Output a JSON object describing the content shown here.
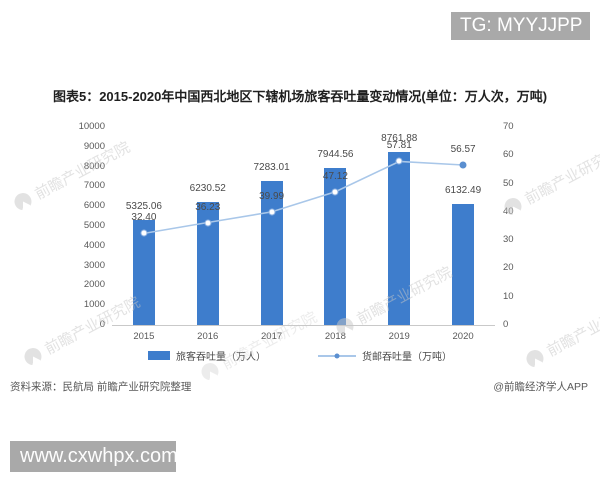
{
  "overlays": {
    "tg_badge": "TG: MYYJJPP",
    "url_badge": "www.cxwhpx.com"
  },
  "title": "图表5：2015-2020年中国西北地区下辖机场旅客吞吐量变动情况(单位：万人次，万吨)",
  "watermark_text": "前瞻产业研究院",
  "footer": {
    "source": "资料来源：民航局 前瞻产业研究院整理",
    "credit": "@前瞻经济学人APP"
  },
  "chart_data": {
    "type": "bar",
    "subtype": "bar+line combo, dual axis",
    "categories": [
      "2015",
      "2016",
      "2017",
      "2018",
      "2019",
      "2020"
    ],
    "series": [
      {
        "name": "旅客吞吐量（万人）",
        "type": "bar",
        "axis": "left",
        "values": [
          5325.06,
          6230.52,
          7283.01,
          7944.56,
          8761.88,
          6132.49
        ],
        "labels": [
          "5325.06",
          "6230.52",
          "7283.01",
          "7944.56",
          "8761.88",
          "6132.49"
        ],
        "color": "#3e7dcc"
      },
      {
        "name": "货邮吞吐量（万吨）",
        "type": "line",
        "axis": "right",
        "values": [
          32.4,
          36.23,
          39.99,
          47.12,
          57.81,
          56.57
        ],
        "labels": [
          "32.40",
          "36.23",
          "39.99",
          "47.12",
          "57.81",
          "56.57"
        ],
        "color": "#a9c7e9"
      }
    ],
    "left_axis": {
      "min": 0,
      "max": 10000,
      "step": 1000
    },
    "right_axis": {
      "min": 0,
      "max": 70,
      "step": 10
    },
    "grid": false,
    "legend_position": "bottom"
  }
}
